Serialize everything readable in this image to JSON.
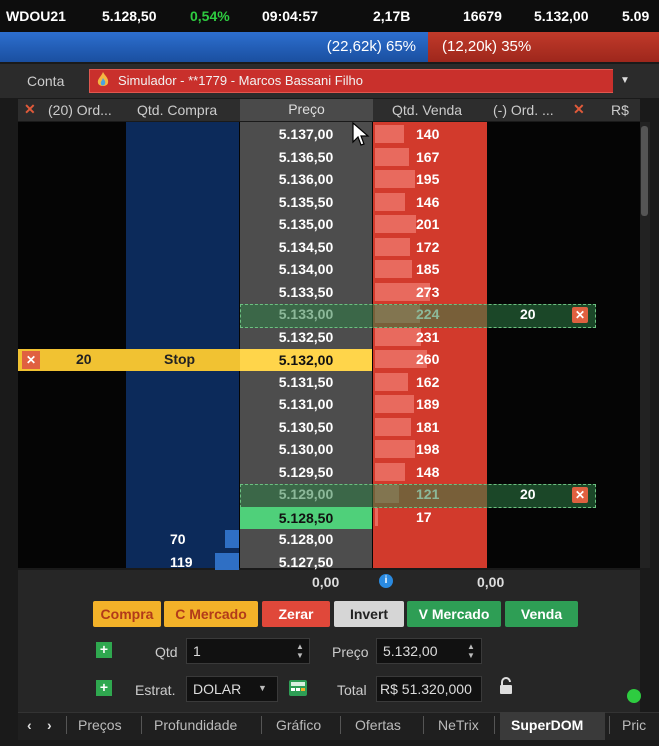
{
  "ticker": {
    "symbol": "WDOU21",
    "last": "5.128,50",
    "change": "0,54%",
    "time": "09:04:57",
    "volume": "2,17B",
    "trades": "16679",
    "price2": "5.132,00",
    "price3": "5.09"
  },
  "sentiment": {
    "buy": "(22,62k) 65%",
    "sell": "(12,20k) 35%",
    "buy_fraction": 0.65
  },
  "account": {
    "label": "Conta",
    "value": "Simulador - **1779 - Marcos Bassani Filho"
  },
  "headers": {
    "buy_orders": "(20) Ord...",
    "buy_qty": "Qtd. Compra",
    "price": "Preço",
    "sell_qty": "Qtd. Venda",
    "sell_orders": "(-) Ord. ...",
    "currency": "R$"
  },
  "ladder": [
    {
      "price": "5.137,00",
      "sell": "140",
      "sell_bar": 0.26
    },
    {
      "price": "5.136,50",
      "sell": "167",
      "sell_bar": 0.31
    },
    {
      "price": "5.136,00",
      "sell": "195",
      "sell_bar": 0.36
    },
    {
      "price": "5.135,50",
      "sell": "146",
      "sell_bar": 0.27
    },
    {
      "price": "5.135,00",
      "sell": "201",
      "sell_bar": 0.37
    },
    {
      "price": "5.134,50",
      "sell": "172",
      "sell_bar": 0.32
    },
    {
      "price": "5.134,00",
      "sell": "185",
      "sell_bar": 0.34
    },
    {
      "price": "5.133,50",
      "sell": "273",
      "sell_bar": 0.5
    },
    {
      "price": "5.133,00",
      "sell": "224",
      "sell_bar": 0.41
    },
    {
      "price": "5.132,50",
      "sell": "231",
      "sell_bar": 0.42
    },
    {
      "price": "5.132,00",
      "sell": "260",
      "sell_bar": 0.47
    },
    {
      "price": "5.131,50",
      "sell": "162",
      "sell_bar": 0.3
    },
    {
      "price": "5.131,00",
      "sell": "189",
      "sell_bar": 0.35
    },
    {
      "price": "5.130,50",
      "sell": "181",
      "sell_bar": 0.33
    },
    {
      "price": "5.130,00",
      "sell": "198",
      "sell_bar": 0.36
    },
    {
      "price": "5.129,50",
      "sell": "148",
      "sell_bar": 0.27
    },
    {
      "price": "5.129,00",
      "sell": "121",
      "sell_bar": 0.22
    },
    {
      "price": "5.128,50",
      "sell": "17",
      "sell_bar": 0.03
    },
    {
      "price": "5.128,00",
      "buy": "70",
      "buy_bar": 0.13
    },
    {
      "price": "5.127,50",
      "buy": "119",
      "buy_bar": 0.22
    }
  ],
  "orders": {
    "sell_order_1_qty": "20",
    "sell_order_2_qty": "20",
    "stop_qty": "20",
    "stop_label": "Stop",
    "stop_price": "5.132,00",
    "last_price": "5.128,50"
  },
  "totals": {
    "left": "0,00",
    "right": "0,00"
  },
  "buttons": {
    "buy": "Compra",
    "buy_market": "C Mercado",
    "zero": "Zerar",
    "invert": "Invert",
    "sell_market": "V Mercado",
    "sell": "Venda"
  },
  "form": {
    "qty_label": "Qtd",
    "qty_value": "1",
    "price_label": "Preço",
    "price_value": "5.132,00",
    "strategy_label": "Estrat.",
    "strategy_value": "DOLAR",
    "total_label": "Total",
    "total_value": "R$ 51.320,000"
  },
  "tabs": [
    "Preços",
    "Profundidade",
    "Gráfico",
    "Ofertas",
    "NeTrix",
    "SuperDOM",
    "Pric"
  ],
  "active_tab": "SuperDOM",
  "colors": {
    "buy": "#1a4fa0",
    "sell": "#d23a2c",
    "last": "#4fd07a",
    "stop": "#f1c232",
    "positive": "#2ecc40"
  }
}
